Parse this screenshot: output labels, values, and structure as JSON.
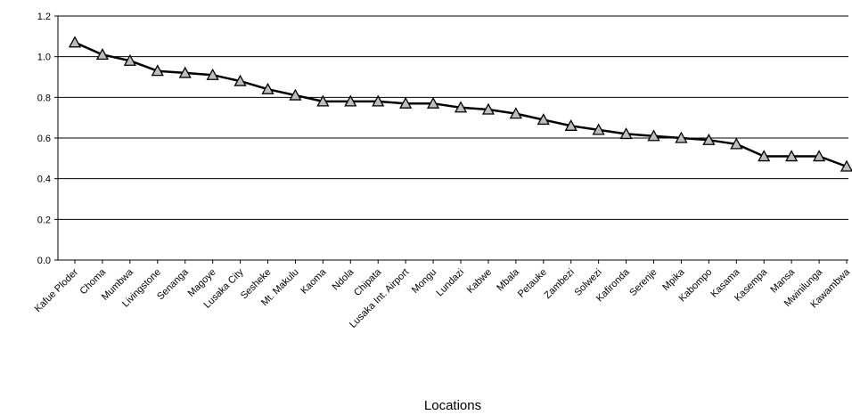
{
  "chart_data": {
    "type": "line",
    "title": "",
    "xlabel": "Locations",
    "ylabel": "",
    "ylim": [
      0,
      1.2
    ],
    "yticks": [
      "0.0",
      "0.2",
      "0.4",
      "0.6",
      "0.8",
      "1.0",
      "1.2"
    ],
    "grid": "horizontal",
    "categories": [
      "Kafue Ploder",
      "Choma",
      "Mumbwa",
      "Livingstone",
      "Senanga",
      "Magoye",
      "Lusaka City",
      "Sesheke",
      "Mt. Makulu",
      "Kaoma",
      "Ndola",
      "Chipata",
      "Lusaka Int. Airport",
      "Mongu",
      "Lundazi",
      "Kabwe",
      "Mbala",
      "Petauke",
      "Zambezi",
      "Solwezi",
      "Kafironda",
      "Serenje",
      "Mpika",
      "Kabompo",
      "Kasama",
      "Kasempa",
      "Mansa",
      "Mwinilunga",
      "Kawambwa"
    ],
    "series": [
      {
        "marker": "triangle",
        "color": "#000000",
        "values": [
          1.07,
          1.01,
          0.98,
          0.93,
          0.92,
          0.91,
          0.88,
          0.84,
          0.81,
          0.78,
          0.78,
          0.78,
          0.77,
          0.77,
          0.75,
          0.74,
          0.72,
          0.69,
          0.66,
          0.64,
          0.62,
          0.61,
          0.6,
          0.59,
          0.57,
          0.51,
          0.51,
          0.51,
          0.46
        ]
      }
    ]
  }
}
